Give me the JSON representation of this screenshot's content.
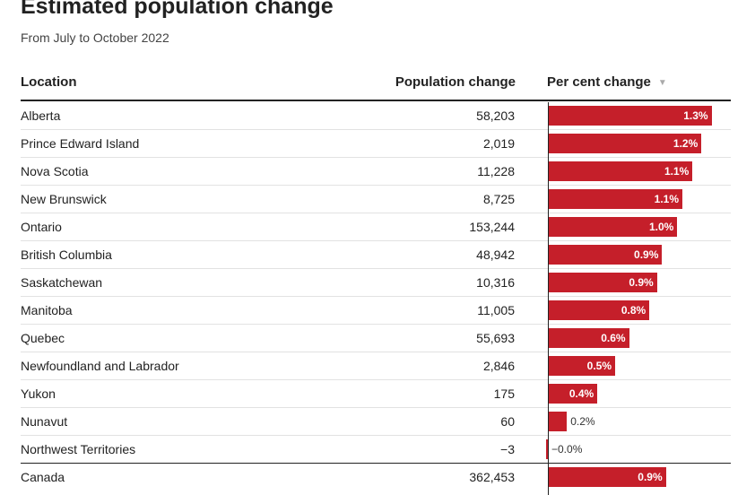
{
  "title": "Estimated population change",
  "subtitle": "From July to October 2022",
  "columns": {
    "location": "Location",
    "population": "Population change",
    "percent": "Per cent change",
    "sort_indicator": "▼"
  },
  "colors": {
    "bar": "#c51f2a",
    "rule": "#222222",
    "separator": "#e2e2e2"
  },
  "chart_data": {
    "type": "bar",
    "orientation": "horizontal",
    "categories": [
      "Alberta",
      "Prince Edward Island",
      "Nova Scotia",
      "New Brunswick",
      "Ontario",
      "British Columbia",
      "Saskatchewan",
      "Manitoba",
      "Quebec",
      "Newfoundland and Labrador",
      "Yukon",
      "Nunavut",
      "Northwest Territories",
      "Canada"
    ],
    "population_change": [
      "58,203",
      "2,019",
      "11,228",
      "8,725",
      "153,244",
      "48,942",
      "10,316",
      "11,005",
      "55,693",
      "2,846",
      "175",
      "60",
      "−3",
      "362,453"
    ],
    "values": [
      1.3,
      1.2,
      1.1,
      1.1,
      1.0,
      0.9,
      0.9,
      0.8,
      0.6,
      0.5,
      0.4,
      0.2,
      -0.0,
      0.9
    ],
    "bar_values": [
      1.29,
      1.21,
      1.14,
      1.06,
      1.02,
      0.9,
      0.86,
      0.8,
      0.64,
      0.53,
      0.39,
      0.15,
      -0.01,
      0.93
    ],
    "value_labels": [
      "1.3%",
      "1.2%",
      "1.1%",
      "1.1%",
      "1.0%",
      "0.9%",
      "0.9%",
      "0.8%",
      "0.6%",
      "0.5%",
      "0.4%",
      "0.2%",
      "−0.0%",
      "0.9%"
    ],
    "total_row": "Canada",
    "sort": "descending by per cent change",
    "xlim": [
      0,
      1.3
    ]
  }
}
